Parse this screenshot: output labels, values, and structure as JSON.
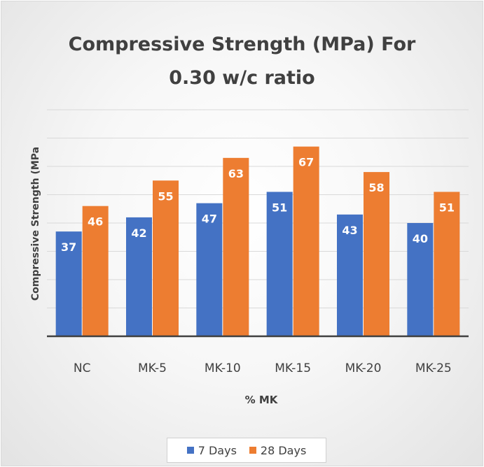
{
  "chart_data": {
    "type": "bar",
    "title": "Compressive Strength (MPa) For 0.30 w/c ratio",
    "title_lines": [
      "Compressive Strength (MPa) For",
      "0.30 w/c ratio"
    ],
    "xlabel": "% MK",
    "ylabel": "Compressive Strength (MPa",
    "categories": [
      "NC",
      "MK-5",
      "MK-10",
      "MK-15",
      "MK-20",
      "MK-25"
    ],
    "series": [
      {
        "name": "7 Days",
        "color": "#4472c4",
        "values": [
          37,
          42,
          47,
          51,
          43,
          40
        ]
      },
      {
        "name": "28 Days",
        "color": "#ed7d31",
        "values": [
          46,
          55,
          63,
          67,
          58,
          51
        ]
      }
    ],
    "ylim": [
      0,
      80
    ],
    "y_major_step": 10,
    "grid": true,
    "data_labels": true,
    "legend_position": "bottom"
  }
}
